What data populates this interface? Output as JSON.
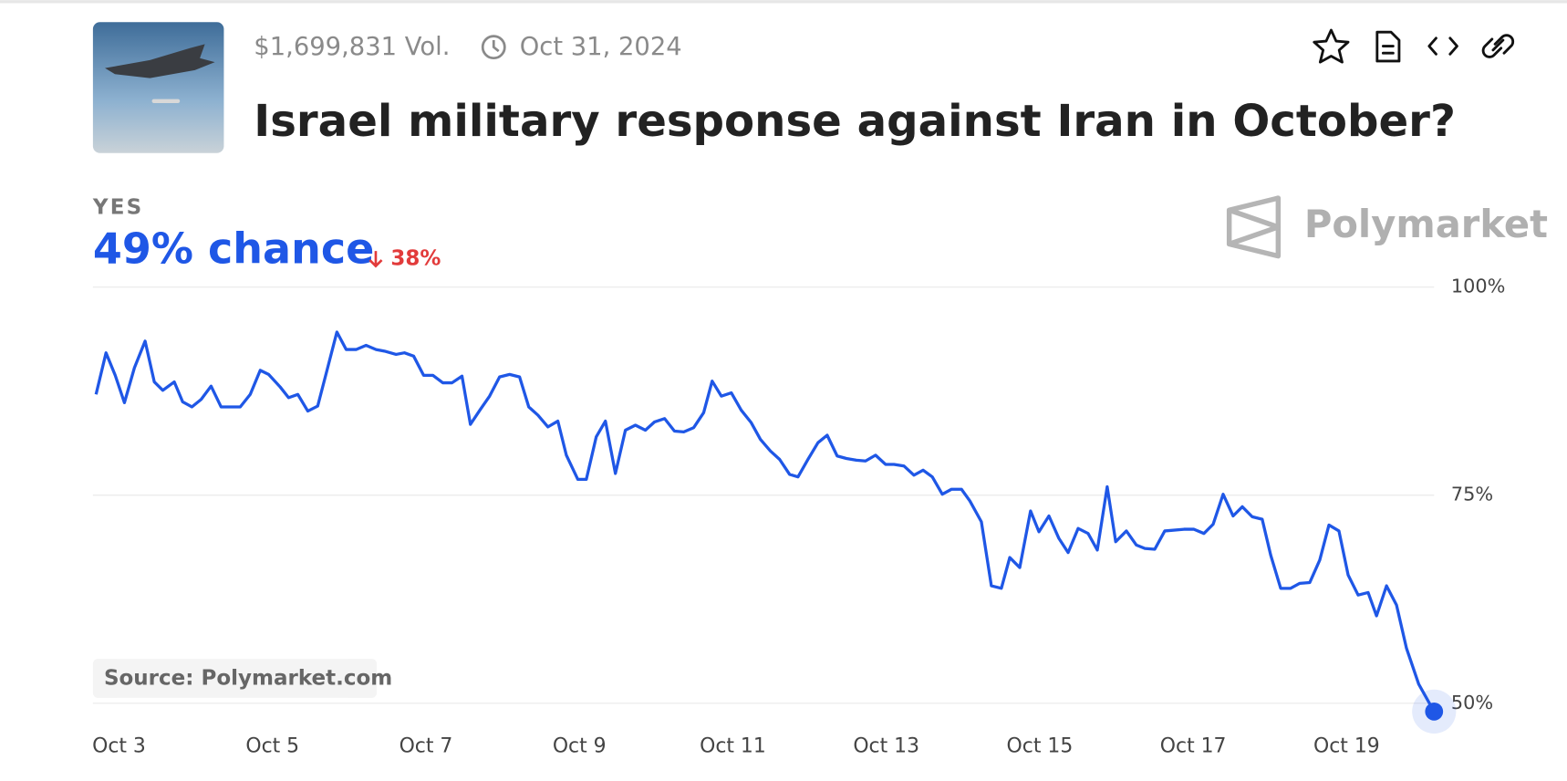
{
  "header": {
    "volume": "$1,699,831 Vol.",
    "end_date": "Oct 31, 2024",
    "title": "Israel military response against Iran in October?"
  },
  "outcome": {
    "label": "YES",
    "chance": "49% chance",
    "change": "38%"
  },
  "brand": "Polymarket",
  "source": "Source: Polymarket.com",
  "chart_data": {
    "type": "line",
    "color": "#1f57e6",
    "grid": true,
    "x": [
      2.7,
      2.83,
      2.95,
      3.07,
      3.2,
      3.34,
      3.46,
      3.57,
      3.72,
      3.83,
      3.95,
      4.07,
      4.2,
      4.33,
      4.58,
      4.71,
      4.84,
      4.95,
      5.1,
      5.21,
      5.33,
      5.46,
      5.59,
      5.71,
      5.84,
      5.96,
      6.09,
      6.22,
      6.35,
      6.46,
      6.61,
      6.72,
      6.84,
      6.97,
      7.09,
      7.22,
      7.34,
      7.47,
      7.58,
      7.71,
      7.83,
      7.96,
      8.09,
      8.22,
      8.34,
      8.46,
      8.59,
      8.72,
      8.83,
      8.98,
      9.09,
      9.22,
      9.34,
      9.47,
      9.6,
      9.73,
      9.86,
      9.98,
      10.11,
      10.24,
      10.36,
      10.49,
      10.62,
      10.73,
      10.85,
      10.98,
      11.11,
      11.24,
      11.36,
      11.49,
      11.61,
      11.74,
      11.85,
      11.98,
      12.11,
      12.23,
      12.36,
      12.48,
      12.61,
      12.73,
      12.86,
      12.99,
      13.1,
      13.23,
      13.36,
      13.48,
      13.6,
      13.73,
      13.85,
      13.98,
      14.09,
      14.24,
      14.37,
      14.5,
      14.61,
      14.74,
      14.88,
      14.99,
      15.12,
      15.25,
      15.37,
      15.5,
      15.63,
      15.75,
      15.88,
      15.99,
      16.13,
      16.26,
      16.37,
      16.5,
      16.63,
      16.88,
      17.01,
      17.14,
      17.26,
      17.39,
      17.52,
      17.64,
      17.77,
      17.9,
      18.01,
      18.14,
      18.27,
      18.39,
      18.52,
      18.65,
      18.77,
      18.9,
      19.02,
      19.15,
      19.28,
      19.39,
      19.52,
      19.65,
      19.78,
      19.94,
      20.14
    ],
    "values": [
      87.1,
      92.1,
      89.4,
      86.1,
      90.3,
      93.5,
      88.6,
      87.6,
      88.6,
      86.2,
      85.6,
      86.5,
      88.1,
      85.6,
      85.6,
      87.1,
      90.0,
      89.5,
      88.0,
      86.7,
      87.1,
      85.1,
      85.7,
      90.0,
      94.6,
      92.5,
      92.5,
      93.0,
      92.5,
      92.3,
      91.9,
      92.1,
      91.7,
      89.4,
      89.4,
      88.5,
      88.5,
      89.3,
      83.5,
      85.3,
      86.9,
      89.2,
      89.5,
      89.2,
      85.6,
      84.6,
      83.2,
      83.9,
      79.8,
      76.9,
      76.9,
      82.0,
      83.9,
      77.6,
      82.8,
      83.4,
      82.8,
      83.8,
      84.2,
      82.7,
      82.6,
      83.1,
      84.9,
      88.7,
      86.9,
      87.3,
      85.2,
      83.7,
      81.7,
      80.3,
      79.3,
      77.5,
      77.2,
      79.3,
      81.3,
      82.2,
      79.7,
      79.4,
      79.2,
      79.1,
      79.8,
      78.7,
      78.7,
      78.5,
      77.4,
      78.0,
      77.2,
      75.1,
      75.7,
      75.7,
      74.3,
      71.8,
      64.1,
      63.8,
      67.5,
      66.3,
      73.1,
      70.6,
      72.5,
      69.8,
      68.1,
      71.0,
      70.4,
      68.4,
      76.0,
      69.4,
      70.7,
      69.0,
      68.6,
      68.5,
      70.7,
      70.9,
      70.9,
      70.4,
      71.5,
      75.1,
      72.5,
      73.6,
      72.4,
      72.1,
      67.8,
      63.8,
      63.8,
      64.4,
      64.5,
      67.2,
      71.4,
      70.7,
      65.4,
      63.0,
      63.3,
      60.5,
      64.1,
      61.8,
      56.6,
      52.3,
      49.0
    ],
    "xlim": [
      2.66,
      20.14
    ],
    "ylim": [
      48,
      100
    ],
    "xticks": [
      {
        "value": 3,
        "label": "Oct 3"
      },
      {
        "value": 5,
        "label": "Oct 5"
      },
      {
        "value": 7,
        "label": "Oct 7"
      },
      {
        "value": 9,
        "label": "Oct 9"
      },
      {
        "value": 11,
        "label": "Oct 11"
      },
      {
        "value": 13,
        "label": "Oct 13"
      },
      {
        "value": 15,
        "label": "Oct 15"
      },
      {
        "value": 17,
        "label": "Oct 17"
      },
      {
        "value": 19,
        "label": "Oct 19"
      }
    ],
    "yticks": [
      {
        "value": 50,
        "label": "50%"
      },
      {
        "value": 75,
        "label": "75%"
      },
      {
        "value": 100,
        "label": "100%"
      }
    ]
  }
}
